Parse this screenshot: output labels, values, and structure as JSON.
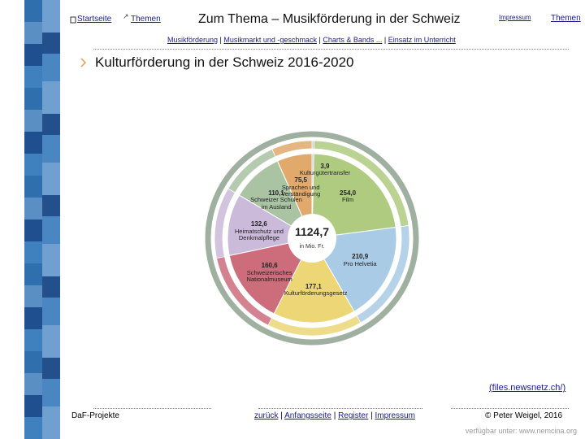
{
  "nav": {
    "home": "Startseite",
    "topics": "Themen",
    "title": "Zum Thema – Musikförderung in der Schweiz",
    "imprint": "Impressum",
    "topics_right": "Themen"
  },
  "separator": "|",
  "sublinks": [
    "Musikförderung",
    "Musikmarkt und -geschmack",
    "Charts & Bands ...",
    "Einsatz im Unterricht"
  ],
  "heading": "Kulturförderung in der Schweiz 2016-2020",
  "chart_data": {
    "type": "donut",
    "total": {
      "value": 1124.7,
      "label": "1124,7"
    },
    "unit": "in Mio. Fr.",
    "categories": [
      "Kulturgütertransfer",
      "Film",
      "Pro Helvetia",
      "Kulturförderungsgesetz",
      "Schweizerisches Nationalmuseum",
      "Heimatschutz und Denkmalpflege",
      "Schweizer Schulen im Ausland",
      "Sprachen und Verständigung"
    ],
    "values": [
      3.9,
      254.0,
      210.9,
      177.1,
      160.6,
      132.6,
      110.1,
      75.5
    ],
    "value_labels": [
      "3,9",
      "254,0",
      "210,9",
      "177,1",
      "160,6",
      "132,6",
      "110,1",
      "75,5"
    ],
    "colors": [
      "#b9c6cf",
      "#aecb80",
      "#a9cbe6",
      "#ecd676",
      "#cd6d7c",
      "#cbbad9",
      "#a9c3a3",
      "#e1aa6c"
    ]
  },
  "source": "(files.newsnetz.ch/)",
  "footer": {
    "left": "DaF-Projekte",
    "links": [
      "zurück",
      "Anfangsseite",
      "Register",
      "Impressum"
    ],
    "copyright": "© Peter Weigel, 2016",
    "availability": "verfügbar unter: www.nemcina.org"
  }
}
